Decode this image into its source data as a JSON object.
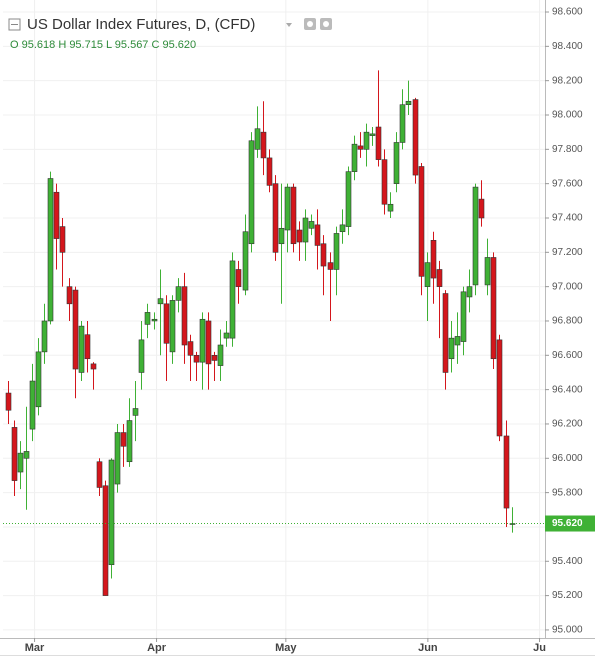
{
  "chart_data": {
    "type": "candlestick",
    "title": "US Dollar Index Futures, D, (CFD)",
    "ohlc_header": "O 95.618 H 95.715 L 95.567 C 95.620",
    "up_color": "#3fb135",
    "down_color": "#d4161c",
    "categories": [
      null,
      null,
      null,
      null,
      null,
      null,
      null,
      null,
      null,
      null,
      null,
      null,
      null,
      null,
      null,
      null,
      null,
      null,
      null,
      null,
      null,
      null,
      null,
      null,
      null,
      null,
      null,
      null,
      null,
      null,
      null,
      null,
      null,
      null,
      null,
      null,
      null,
      null,
      null,
      null,
      null,
      null,
      null,
      null,
      null,
      null,
      null,
      null,
      null,
      null,
      null,
      null,
      null,
      null,
      null,
      null,
      null,
      null,
      null,
      null,
      null,
      null,
      null,
      null,
      null,
      null,
      null,
      null,
      null,
      null,
      null,
      null,
      null,
      null,
      null,
      null,
      null,
      null,
      null,
      null,
      null,
      null,
      null,
      null
    ],
    "open": [
      96.38,
      96.18,
      95.92,
      96.0,
      96.17,
      96.3,
      96.62,
      96.8,
      97.55,
      97.35,
      97.0,
      96.98,
      96.5,
      96.72,
      96.55,
      95.98,
      95.84,
      95.38,
      95.85,
      96.15,
      95.98,
      96.25,
      96.5,
      96.78,
      96.8,
      96.9,
      96.9,
      96.62,
      96.92,
      97.0,
      96.68,
      96.6,
      96.56,
      96.8,
      96.6,
      96.54,
      96.7,
      96.7,
      97.1,
      96.98,
      97.25,
      97.8,
      97.9,
      97.75,
      97.6,
      97.25,
      97.33,
      97.58,
      97.33,
      97.26,
      97.34,
      97.36,
      97.25,
      97.14,
      97.1,
      97.32,
      97.35,
      97.67,
      97.82,
      97.8,
      97.88,
      97.93,
      97.74,
      97.44,
      97.6,
      97.84,
      98.06,
      98.09,
      97.7,
      97.0,
      97.27,
      97.1,
      96.96,
      96.58,
      96.66,
      96.68,
      96.94,
      97.01,
      97.51,
      97.01,
      97.17,
      96.69,
      96.13,
      95.618
    ],
    "high": [
      96.45,
      96.22,
      96.1,
      96.3,
      96.55,
      96.7,
      96.9,
      97.67,
      97.6,
      97.4,
      97.05,
      97.0,
      96.8,
      96.8,
      96.56,
      96.0,
      95.87,
      96.0,
      96.2,
      96.2,
      96.35,
      96.45,
      96.8,
      96.9,
      96.85,
      97.1,
      96.95,
      96.95,
      97.05,
      97.08,
      96.72,
      96.62,
      96.85,
      96.85,
      96.62,
      96.75,
      96.8,
      97.2,
      97.15,
      97.42,
      97.9,
      98.05,
      98.08,
      97.8,
      97.65,
      97.6,
      97.6,
      97.6,
      97.38,
      97.45,
      97.42,
      97.45,
      97.3,
      97.2,
      97.35,
      97.45,
      97.7,
      97.88,
      97.9,
      97.95,
      97.93,
      98.26,
      97.8,
      97.55,
      97.9,
      98.15,
      98.2,
      98.1,
      97.72,
      97.2,
      97.32,
      97.15,
      96.98,
      96.8,
      96.85,
      97.0,
      97.1,
      97.6,
      97.62,
      97.28,
      97.2,
      96.72,
      96.22,
      95.715
    ],
    "low": [
      96.2,
      95.78,
      95.82,
      95.7,
      96.1,
      96.25,
      96.55,
      96.78,
      97.1,
      97.0,
      96.8,
      96.35,
      96.45,
      96.5,
      96.4,
      95.78,
      95.2,
      95.3,
      95.8,
      95.95,
      95.95,
      96.1,
      96.4,
      96.7,
      96.75,
      96.6,
      96.45,
      96.55,
      96.85,
      96.55,
      96.45,
      96.45,
      96.4,
      96.4,
      96.45,
      96.45,
      96.65,
      96.65,
      96.9,
      96.95,
      97.2,
      97.75,
      97.65,
      97.55,
      97.15,
      96.9,
      97.2,
      97.2,
      97.15,
      97.15,
      97.3,
      97.1,
      96.95,
      96.8,
      96.95,
      97.25,
      97.3,
      97.62,
      97.75,
      97.7,
      97.82,
      97.7,
      97.42,
      97.4,
      97.55,
      97.8,
      98.0,
      97.6,
      96.95,
      96.8,
      96.9,
      96.7,
      96.4,
      96.5,
      96.55,
      96.6,
      96.85,
      96.95,
      97.35,
      96.95,
      96.52,
      96.1,
      95.6,
      95.567
    ],
    "close": [
      96.28,
      95.87,
      96.03,
      96.04,
      96.45,
      96.62,
      96.8,
      97.63,
      97.28,
      97.2,
      96.9,
      96.52,
      96.77,
      96.58,
      96.52,
      95.83,
      95.2,
      95.99,
      96.15,
      96.07,
      96.22,
      96.29,
      96.69,
      96.85,
      96.81,
      96.93,
      96.67,
      96.92,
      97.0,
      96.66,
      96.6,
      96.56,
      96.81,
      96.55,
      96.57,
      96.66,
      96.73,
      97.15,
      97.0,
      97.32,
      97.85,
      97.92,
      97.75,
      97.59,
      97.2,
      97.34,
      97.58,
      97.25,
      97.26,
      97.4,
      97.38,
      97.24,
      97.12,
      97.1,
      97.31,
      97.36,
      97.67,
      97.83,
      97.8,
      97.9,
      97.89,
      97.74,
      97.48,
      97.48,
      97.84,
      98.06,
      98.08,
      97.65,
      97.06,
      97.14,
      97.05,
      97.0,
      96.5,
      96.7,
      96.71,
      96.97,
      97.0,
      97.58,
      97.4,
      97.17,
      96.58,
      96.13,
      95.71,
      95.62
    ],
    "xlim": [
      -0.8,
      88.5
    ],
    "xticks": [
      {
        "value": 4.4,
        "label": "Mar"
      },
      {
        "value": 24.5,
        "label": "Apr"
      },
      {
        "value": 45.8,
        "label": "May"
      },
      {
        "value": 69.2,
        "label": "Jun"
      },
      {
        "value": 87.6,
        "label": "Ju"
      }
    ],
    "ylim": [
      94.953,
      98.67
    ],
    "yticks": [
      {
        "value": 95.0,
        "label": "95.000"
      },
      {
        "value": 95.2,
        "label": "95.200"
      },
      {
        "value": 95.4,
        "label": "95.400"
      },
      {
        "value": 95.6,
        "label": "95.600"
      },
      {
        "value": 95.8,
        "label": "95.800"
      },
      {
        "value": 96.0,
        "label": "96.000"
      },
      {
        "value": 96.2,
        "label": "96.200"
      },
      {
        "value": 96.4,
        "label": "96.400"
      },
      {
        "value": 96.6,
        "label": "96.600"
      },
      {
        "value": 96.8,
        "label": "96.800"
      },
      {
        "value": 97.0,
        "label": "97.000"
      },
      {
        "value": 97.2,
        "label": "97.200"
      },
      {
        "value": 97.4,
        "label": "97.400"
      },
      {
        "value": 97.6,
        "label": "97.600"
      },
      {
        "value": 97.8,
        "label": "97.800"
      },
      {
        "value": 98.0,
        "label": "98.000"
      },
      {
        "value": 98.2,
        "label": "98.200"
      },
      {
        "value": 98.4,
        "label": "98.400"
      },
      {
        "value": 98.6,
        "label": "98.600"
      }
    ],
    "last_price": {
      "value": 95.62,
      "label": "95.620"
    },
    "grid": true
  }
}
